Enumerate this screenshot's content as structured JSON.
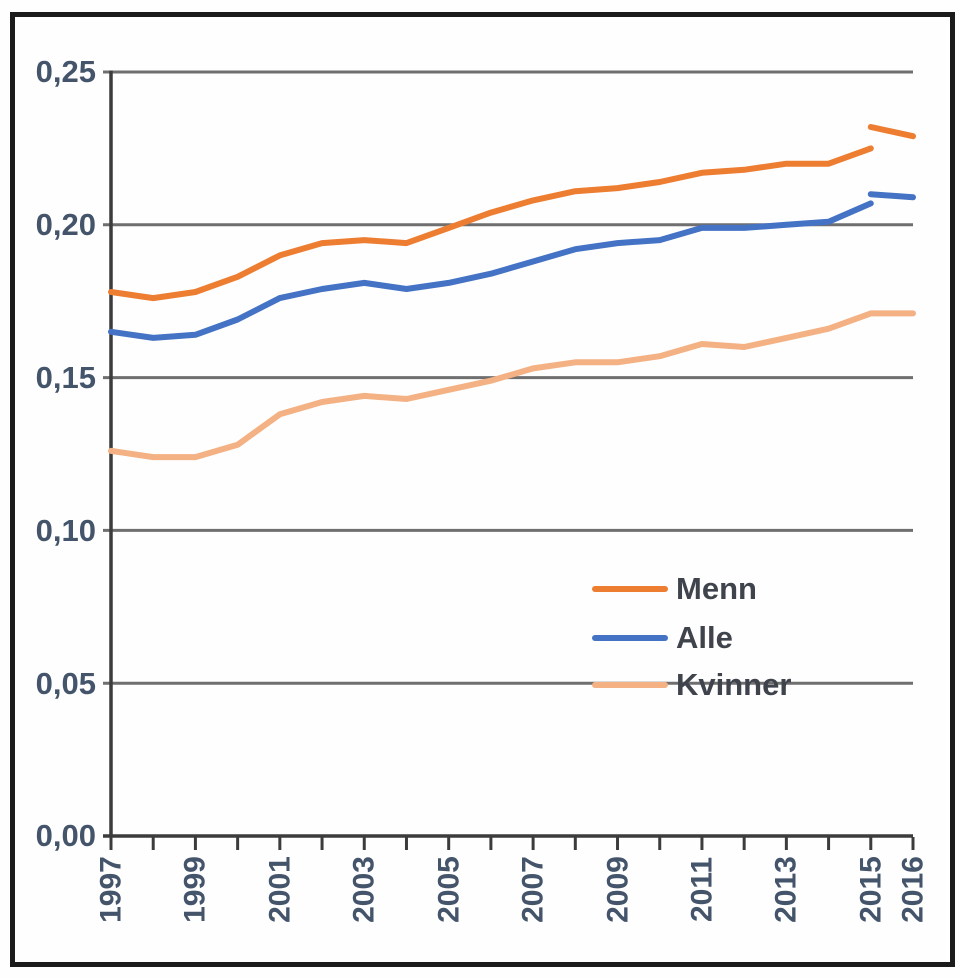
{
  "chart_data": {
    "type": "line",
    "title": "",
    "x_axis": {
      "tick_years": [
        1997,
        1998,
        1999,
        2000,
        2001,
        2002,
        2003,
        2004,
        2005,
        2006,
        2007,
        2008,
        2009,
        2010,
        2011,
        2012,
        2013,
        2014,
        2015,
        2016
      ],
      "labels": [
        "1997",
        "1999",
        "2001",
        "2003",
        "2005",
        "2007",
        "2009",
        "2011",
        "2013",
        "2015",
        "2016"
      ],
      "label_years": [
        1997,
        1999,
        2001,
        2003,
        2005,
        2007,
        2009,
        2011,
        2013,
        2015,
        2016
      ]
    },
    "y_axis": {
      "labels": [
        "0,25",
        "0,20",
        "0,15",
        "0,10",
        "0,05",
        "0,00"
      ],
      "gridline_values": [
        0.25,
        0.2,
        0.15,
        0.1,
        0.05
      ],
      "range": [
        0,
        0.25
      ],
      "tick_interval": 0.05
    },
    "series": [
      {
        "name": "Kvinner",
        "color": "#F4B183",
        "years": [
          1997,
          1998,
          1999,
          2000,
          2001,
          2002,
          2003,
          2004,
          2005,
          2006,
          2007,
          2008,
          2009,
          2010,
          2011,
          2012,
          2013,
          2014,
          2015,
          2016
        ],
        "values": [
          0.126,
          0.124,
          0.124,
          0.128,
          0.138,
          0.142,
          0.144,
          0.143,
          0.146,
          0.149,
          0.153,
          0.155,
          0.155,
          0.157,
          0.161,
          0.16,
          0.163,
          0.166,
          0.171,
          0.171
        ]
      },
      {
        "name": "Alle",
        "color": "#4472C4",
        "years": [
          1997,
          1998,
          1999,
          2000,
          2001,
          2002,
          2003,
          2004,
          2005,
          2006,
          2007,
          2008,
          2009,
          2010,
          2011,
          2012,
          2013,
          2014,
          2015
        ],
        "values": [
          0.165,
          0.163,
          0.164,
          0.169,
          0.176,
          0.179,
          0.181,
          0.179,
          0.181,
          0.184,
          0.188,
          0.192,
          0.194,
          0.195,
          0.199,
          0.199,
          0.2,
          0.201,
          0.207
        ]
      },
      {
        "name": "Alle",
        "segment": 2,
        "color": "#4472C4",
        "years": [
          2015,
          2016
        ],
        "values": [
          0.21,
          0.209
        ]
      },
      {
        "name": "Menn",
        "color": "#ED7D31",
        "years": [
          1997,
          1998,
          1999,
          2000,
          2001,
          2002,
          2003,
          2004,
          2005,
          2006,
          2007,
          2008,
          2009,
          2010,
          2011,
          2012,
          2013,
          2014,
          2015
        ],
        "values": [
          0.178,
          0.176,
          0.178,
          0.183,
          0.19,
          0.194,
          0.195,
          0.194,
          0.199,
          0.204,
          0.208,
          0.211,
          0.212,
          0.214,
          0.217,
          0.218,
          0.22,
          0.22,
          0.225
        ]
      },
      {
        "name": "Menn",
        "segment": 2,
        "color": "#ED7D31",
        "years": [
          2015,
          2016
        ],
        "values": [
          0.232,
          0.229
        ]
      }
    ],
    "legend": {
      "position": "inside-right-lower",
      "items": [
        {
          "label": "Menn",
          "color": "#ED7D31"
        },
        {
          "label": "Alle",
          "color": "#4472C4"
        },
        {
          "label": "Kvinner",
          "color": "#F4B183"
        }
      ]
    },
    "grid": true
  },
  "colors": {
    "background": "#FEFEFE",
    "frame": "#1B1B1B",
    "gridline": "#6F6F6F",
    "axis": "#3C3C3C",
    "y_tick_label": "#44546A",
    "x_tick_label": "#44546A",
    "legend_text": "#3F434C"
  }
}
